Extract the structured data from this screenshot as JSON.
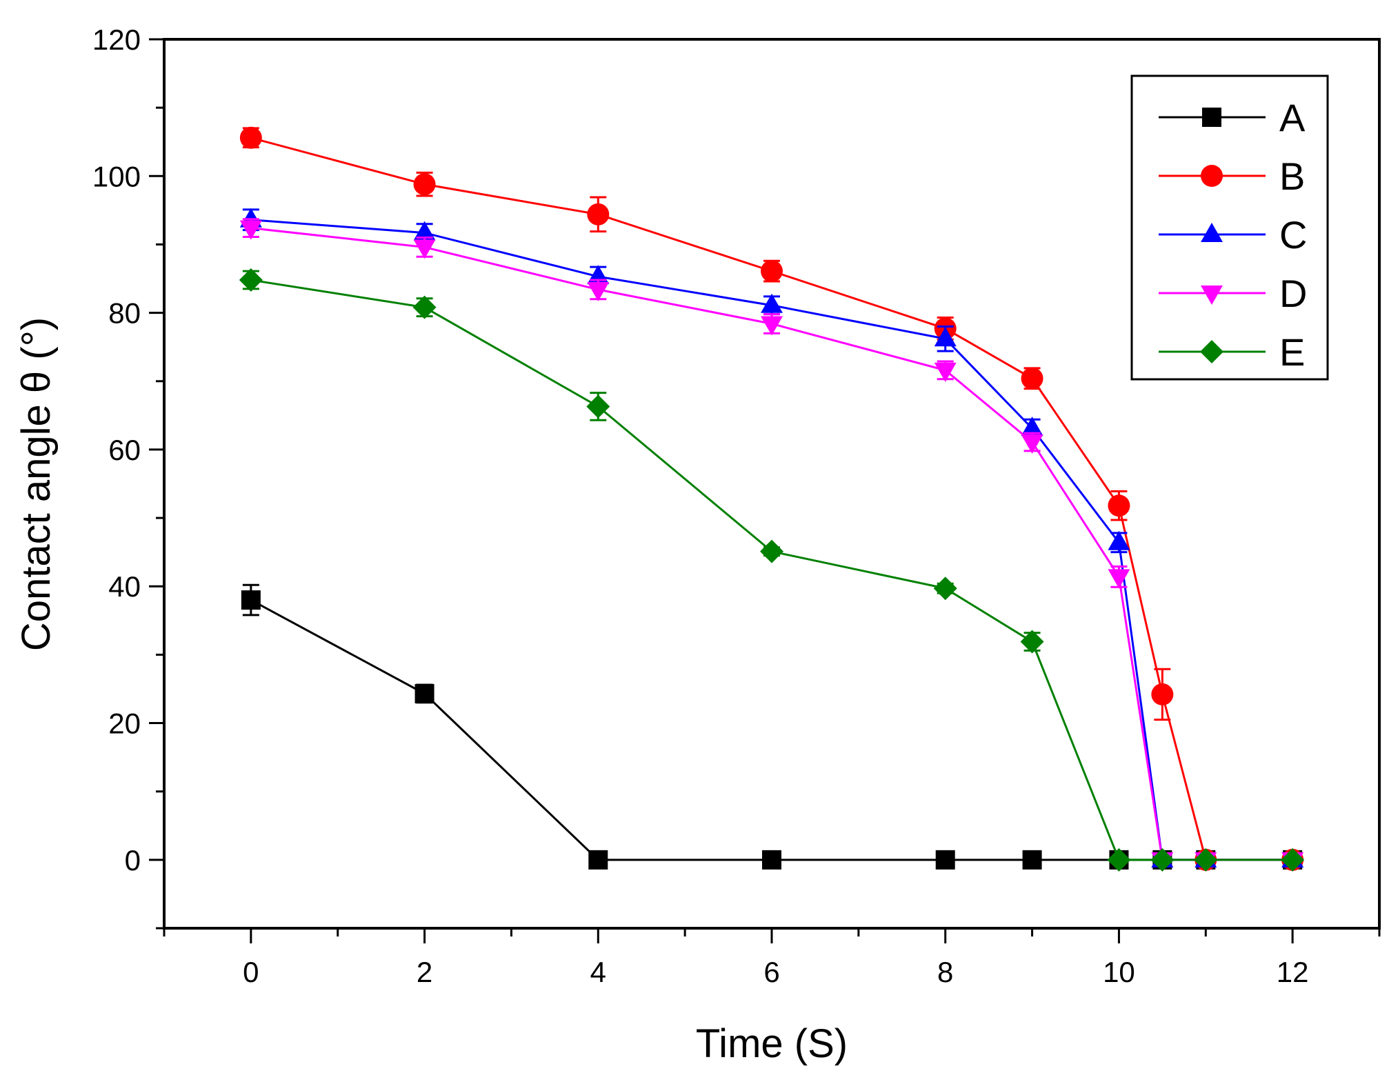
{
  "chart_data": {
    "type": "line",
    "title": "",
    "xlabel": "Time (S)",
    "ylabel": "Contact angle  θ (°)",
    "xlim": [
      -1,
      13
    ],
    "ylim": [
      -10,
      120
    ],
    "x_ticks": [
      0,
      2,
      4,
      6,
      8,
      10,
      12
    ],
    "x_tick_labels": [
      "0",
      "2",
      "4",
      "6",
      "8",
      "10",
      "12"
    ],
    "y_ticks": [
      0,
      20,
      40,
      60,
      80,
      100,
      120
    ],
    "y_tick_labels": [
      "0",
      "20",
      "40",
      "60",
      "80",
      "100",
      "120"
    ],
    "grid": false,
    "legend_position": "top-right",
    "series": [
      {
        "name": "A",
        "color": "#000000",
        "marker": "square",
        "x": [
          0,
          2,
          4,
          6,
          8,
          9,
          10,
          10.5,
          11,
          12
        ],
        "y": [
          38,
          24.3,
          0,
          0,
          0,
          0,
          0,
          0,
          0,
          0
        ],
        "err": [
          2.2,
          1.3,
          0,
          0,
          0,
          0,
          0,
          0,
          0,
          0
        ]
      },
      {
        "name": "B",
        "color": "#ff0000",
        "marker": "circle",
        "x": [
          0,
          2,
          4,
          6,
          8,
          9,
          10,
          10.5,
          11,
          12
        ],
        "y": [
          105.6,
          98.8,
          94.4,
          86.1,
          77.7,
          70.4,
          51.8,
          24.2,
          0,
          0
        ],
        "err": [
          1.4,
          1.7,
          2.5,
          1.5,
          1.6,
          1.5,
          2.1,
          3.7,
          0,
          0
        ]
      },
      {
        "name": "C",
        "color": "#0000ff",
        "marker": "triangle-up",
        "x": [
          0,
          2,
          4,
          6,
          8,
          9,
          10,
          10.5,
          11,
          12
        ],
        "y": [
          93.6,
          91.7,
          85.3,
          81.1,
          76.2,
          63.1,
          46.4,
          0,
          0,
          0
        ],
        "err": [
          1.5,
          1.3,
          1.4,
          1.3,
          1.8,
          1.3,
          1.4,
          0,
          0,
          0
        ]
      },
      {
        "name": "D",
        "color": "#ff00ff",
        "marker": "triangle-down",
        "x": [
          0,
          2,
          4,
          6,
          8,
          9,
          10,
          10.5,
          11,
          12
        ],
        "y": [
          92.4,
          89.6,
          83.4,
          78.4,
          71.6,
          61.1,
          41.4,
          0,
          0,
          0
        ],
        "err": [
          1.3,
          1.4,
          1.4,
          1.4,
          1.3,
          1.3,
          1.5,
          0,
          0,
          0
        ]
      },
      {
        "name": "E",
        "color": "#008000",
        "marker": "diamond",
        "x": [
          0,
          2,
          4,
          6,
          8,
          9,
          10,
          10.5,
          11,
          12
        ],
        "y": [
          84.8,
          80.8,
          66.3,
          45.1,
          39.7,
          31.9,
          0,
          0,
          0,
          0
        ],
        "err": [
          1.3,
          1.3,
          2.0,
          0.6,
          0.7,
          1.3,
          0,
          0,
          0,
          0
        ]
      }
    ]
  }
}
